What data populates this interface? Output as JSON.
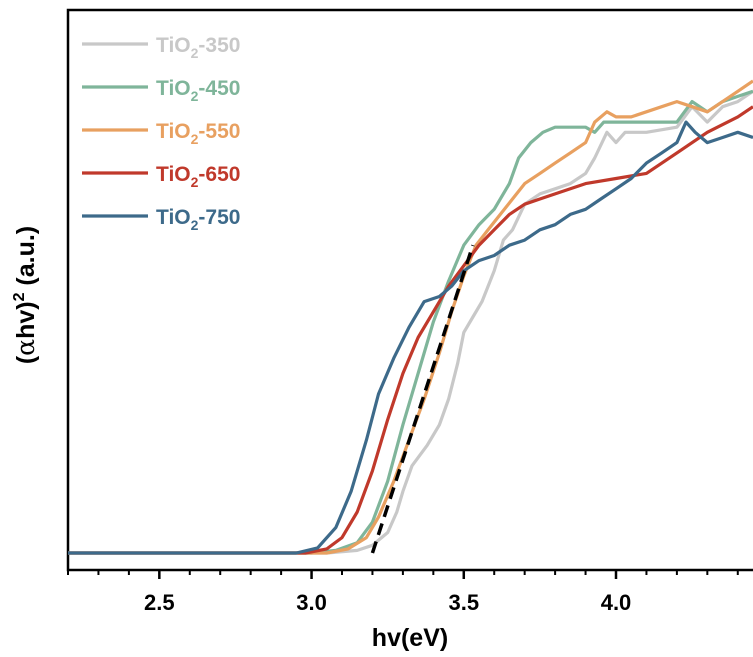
{
  "chart_data": {
    "type": "line",
    "title": "",
    "xlabel": "hv(eV)",
    "ylabel_parts": [
      "(",
      "α",
      "hv)",
      "2",
      " (a.u.)"
    ],
    "xlim": [
      2.2,
      4.45
    ],
    "ylim": [
      0,
      1.0
    ],
    "x_ticks": [
      2.5,
      3.0,
      3.5,
      4.0
    ],
    "x_tick_labels": [
      "2.5",
      "3.0",
      "3.5",
      "4.0"
    ],
    "y_ticks": [],
    "grid": false,
    "legend_position": "top-left",
    "series": [
      {
        "name_parts": [
          "TiO",
          "2",
          "-350"
        ],
        "color": "#c8c8c8",
        "points": [
          [
            2.2,
            0
          ],
          [
            3.05,
            0
          ],
          [
            3.15,
            0.005
          ],
          [
            3.2,
            0.015
          ],
          [
            3.25,
            0.04
          ],
          [
            3.28,
            0.08
          ],
          [
            3.3,
            0.12
          ],
          [
            3.33,
            0.17
          ],
          [
            3.38,
            0.21
          ],
          [
            3.42,
            0.25
          ],
          [
            3.45,
            0.3
          ],
          [
            3.48,
            0.37
          ],
          [
            3.5,
            0.43
          ],
          [
            3.53,
            0.46
          ],
          [
            3.56,
            0.49
          ],
          [
            3.6,
            0.55
          ],
          [
            3.63,
            0.61
          ],
          [
            3.66,
            0.63
          ],
          [
            3.7,
            0.68
          ],
          [
            3.75,
            0.7
          ],
          [
            3.8,
            0.71
          ],
          [
            3.85,
            0.72
          ],
          [
            3.9,
            0.74
          ],
          [
            3.93,
            0.77
          ],
          [
            3.97,
            0.82
          ],
          [
            4.0,
            0.8
          ],
          [
            4.03,
            0.82
          ],
          [
            4.1,
            0.82
          ],
          [
            4.2,
            0.83
          ],
          [
            4.25,
            0.87
          ],
          [
            4.3,
            0.84
          ],
          [
            4.35,
            0.87
          ],
          [
            4.4,
            0.88
          ],
          [
            4.45,
            0.9
          ]
        ]
      },
      {
        "name_parts": [
          "TiO",
          "2",
          "-450"
        ],
        "color": "#7fb59a",
        "points": [
          [
            2.2,
            0
          ],
          [
            3.0,
            0
          ],
          [
            3.08,
            0.005
          ],
          [
            3.15,
            0.02
          ],
          [
            3.2,
            0.06
          ],
          [
            3.25,
            0.14
          ],
          [
            3.3,
            0.25
          ],
          [
            3.35,
            0.35
          ],
          [
            3.4,
            0.45
          ],
          [
            3.45,
            0.53
          ],
          [
            3.5,
            0.6
          ],
          [
            3.55,
            0.64
          ],
          [
            3.6,
            0.67
          ],
          [
            3.65,
            0.72
          ],
          [
            3.68,
            0.77
          ],
          [
            3.72,
            0.8
          ],
          [
            3.76,
            0.82
          ],
          [
            3.8,
            0.83
          ],
          [
            3.85,
            0.83
          ],
          [
            3.9,
            0.83
          ],
          [
            3.93,
            0.82
          ],
          [
            3.96,
            0.84
          ],
          [
            4.0,
            0.84
          ],
          [
            4.05,
            0.84
          ],
          [
            4.1,
            0.84
          ],
          [
            4.2,
            0.84
          ],
          [
            4.25,
            0.88
          ],
          [
            4.3,
            0.86
          ],
          [
            4.35,
            0.88
          ],
          [
            4.4,
            0.89
          ],
          [
            4.45,
            0.9
          ]
        ]
      },
      {
        "name_parts": [
          "TiO",
          "2",
          "-550"
        ],
        "color": "#e8a060",
        "points": [
          [
            2.2,
            0
          ],
          [
            3.05,
            0
          ],
          [
            3.12,
            0.008
          ],
          [
            3.18,
            0.03
          ],
          [
            3.22,
            0.07
          ],
          [
            3.27,
            0.14
          ],
          [
            3.32,
            0.22
          ],
          [
            3.37,
            0.3
          ],
          [
            3.42,
            0.39
          ],
          [
            3.46,
            0.47
          ],
          [
            3.5,
            0.54
          ],
          [
            3.54,
            0.6
          ],
          [
            3.58,
            0.63
          ],
          [
            3.62,
            0.66
          ],
          [
            3.66,
            0.69
          ],
          [
            3.7,
            0.72
          ],
          [
            3.75,
            0.74
          ],
          [
            3.8,
            0.76
          ],
          [
            3.85,
            0.78
          ],
          [
            3.9,
            0.8
          ],
          [
            3.93,
            0.84
          ],
          [
            3.97,
            0.86
          ],
          [
            4.0,
            0.85
          ],
          [
            4.05,
            0.85
          ],
          [
            4.1,
            0.86
          ],
          [
            4.15,
            0.87
          ],
          [
            4.2,
            0.88
          ],
          [
            4.25,
            0.87
          ],
          [
            4.3,
            0.86
          ],
          [
            4.35,
            0.88
          ],
          [
            4.4,
            0.9
          ],
          [
            4.45,
            0.92
          ]
        ]
      },
      {
        "name_parts": [
          "TiO",
          "2",
          "-650"
        ],
        "color": "#c0392b",
        "points": [
          [
            2.2,
            0
          ],
          [
            2.98,
            0
          ],
          [
            3.05,
            0.008
          ],
          [
            3.1,
            0.03
          ],
          [
            3.15,
            0.08
          ],
          [
            3.2,
            0.16
          ],
          [
            3.25,
            0.26
          ],
          [
            3.3,
            0.35
          ],
          [
            3.35,
            0.42
          ],
          [
            3.4,
            0.47
          ],
          [
            3.45,
            0.52
          ],
          [
            3.5,
            0.56
          ],
          [
            3.55,
            0.6
          ],
          [
            3.6,
            0.63
          ],
          [
            3.65,
            0.66
          ],
          [
            3.7,
            0.68
          ],
          [
            3.75,
            0.69
          ],
          [
            3.8,
            0.7
          ],
          [
            3.9,
            0.72
          ],
          [
            4.0,
            0.73
          ],
          [
            4.1,
            0.74
          ],
          [
            4.2,
            0.78
          ],
          [
            4.3,
            0.82
          ],
          [
            4.4,
            0.85
          ],
          [
            4.45,
            0.87
          ]
        ]
      },
      {
        "name_parts": [
          "TiO",
          "2",
          "-750"
        ],
        "color": "#3d6a8a",
        "points": [
          [
            2.2,
            0
          ],
          [
            2.95,
            0
          ],
          [
            3.02,
            0.01
          ],
          [
            3.08,
            0.05
          ],
          [
            3.13,
            0.12
          ],
          [
            3.18,
            0.22
          ],
          [
            3.22,
            0.31
          ],
          [
            3.27,
            0.38
          ],
          [
            3.32,
            0.44
          ],
          [
            3.37,
            0.49
          ],
          [
            3.42,
            0.5
          ],
          [
            3.46,
            0.52
          ],
          [
            3.5,
            0.55
          ],
          [
            3.55,
            0.57
          ],
          [
            3.6,
            0.58
          ],
          [
            3.65,
            0.6
          ],
          [
            3.7,
            0.61
          ],
          [
            3.75,
            0.63
          ],
          [
            3.8,
            0.64
          ],
          [
            3.85,
            0.66
          ],
          [
            3.9,
            0.67
          ],
          [
            3.95,
            0.69
          ],
          [
            4.0,
            0.71
          ],
          [
            4.05,
            0.73
          ],
          [
            4.1,
            0.76
          ],
          [
            4.15,
            0.78
          ],
          [
            4.2,
            0.8
          ],
          [
            4.23,
            0.84
          ],
          [
            4.26,
            0.82
          ],
          [
            4.3,
            0.8
          ],
          [
            4.35,
            0.81
          ],
          [
            4.4,
            0.82
          ],
          [
            4.45,
            0.81
          ]
        ]
      }
    ],
    "tangent_line": {
      "color": "#000000",
      "points": [
        [
          3.2,
          0.0
        ],
        [
          3.53,
          0.6
        ]
      ]
    }
  }
}
